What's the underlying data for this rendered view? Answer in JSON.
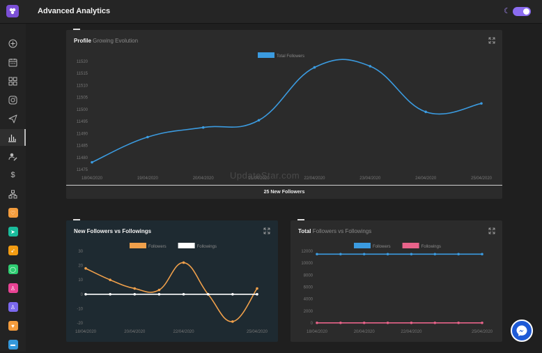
{
  "header": {
    "title": "Advanced Analytics",
    "theme_toggle": "on"
  },
  "sidebar": {
    "items": [
      {
        "icon": "add-circle-icon"
      },
      {
        "icon": "calendar-icon"
      },
      {
        "icon": "grid-icon"
      },
      {
        "icon": "instagram-icon"
      },
      {
        "icon": "send-icon"
      },
      {
        "icon": "bar-chart-icon",
        "active": true
      },
      {
        "icon": "user-edit-icon"
      },
      {
        "icon": "dollar-icon"
      },
      {
        "icon": "hierarchy-icon"
      },
      {
        "icon": "heart-app-icon",
        "color": "#f39c3d"
      },
      {
        "icon": "telegram-app-icon",
        "color": "#1abc9c"
      },
      {
        "icon": "rocket-app-icon",
        "color": "#f39c12"
      },
      {
        "icon": "whatsapp-app-icon",
        "color": "#2ecc71"
      },
      {
        "icon": "user-app-icon",
        "color": "#e84393"
      },
      {
        "icon": "users-app-icon",
        "color": "#7b68ee"
      },
      {
        "icon": "heart-badge-app-icon",
        "color": "#f39c3d"
      },
      {
        "icon": "chat-app-icon",
        "color": "#3498db"
      }
    ]
  },
  "watermark": "UpdateStar.com",
  "cards": {
    "profile": {
      "title_bold": "Profile",
      "title_muted": "Growing Evolution",
      "footer": "25 New Followers"
    },
    "new_vs": {
      "title_bold": "New Followers vs Followings",
      "title_muted": ""
    },
    "total_vs": {
      "title_bold": "Total",
      "title_muted": "Followers vs Followings"
    }
  },
  "chart_data": [
    {
      "type": "line",
      "title": "Profile Growing Evolution",
      "x": [
        "18/04/2020",
        "19/04/2020",
        "20/04/2020",
        "21/04/2020",
        "22/04/2020",
        "23/04/2020",
        "24/04/2020",
        "25/04/2020"
      ],
      "series": [
        {
          "name": "Total Followers",
          "values": [
            11478,
            11488.5,
            11492.5,
            11495.5,
            11517.5,
            11518,
            11499,
            11502.5
          ],
          "color": "#3b9be0"
        }
      ],
      "ylim": [
        11475,
        11520
      ],
      "yticks": [
        11475,
        11480,
        11485,
        11490,
        11495,
        11500,
        11505,
        11510,
        11515,
        11520
      ],
      "xtick_labels": [
        "18/04/2020",
        "19/04/2020",
        "20/04/2020",
        "21/04/2020",
        "22/04/2020",
        "23/04/2020",
        "24/04/2020",
        "25/04/2020"
      ],
      "legend": "top-center"
    },
    {
      "type": "line",
      "title": "New Followers vs Followings",
      "x": [
        "18/04/2020",
        "19/04/2020",
        "20/04/2020",
        "21/04/2020",
        "22/04/2020",
        "23/04/2020",
        "24/04/2020",
        "25/04/2020"
      ],
      "series": [
        {
          "name": "Followers",
          "values": [
            18,
            10,
            4,
            3,
            22,
            0,
            -19,
            4
          ],
          "color": "#f0a04b"
        },
        {
          "name": "Followings",
          "values": [
            0,
            0,
            0,
            0,
            0,
            0,
            0,
            0
          ],
          "color": "#ffffff"
        }
      ],
      "ylim": [
        -20,
        30
      ],
      "yticks": [
        -20,
        -10,
        0,
        10,
        20,
        30
      ],
      "xtick_labels": [
        "18/04/2020",
        "20/04/2020",
        "22/04/2020",
        "25/04/2020"
      ],
      "legend": "top-center"
    },
    {
      "type": "line",
      "title": "Total Followers vs Followings",
      "x": [
        "18/04/2020",
        "19/04/2020",
        "20/04/2020",
        "21/04/2020",
        "22/04/2020",
        "23/04/2020",
        "24/04/2020",
        "25/04/2020"
      ],
      "series": [
        {
          "name": "Followers",
          "values": [
            11500,
            11500,
            11500,
            11500,
            11500,
            11500,
            11500,
            11500
          ],
          "color": "#3b9be0"
        },
        {
          "name": "Followings",
          "values": [
            25,
            25,
            25,
            25,
            25,
            25,
            25,
            25
          ],
          "color": "#e8638a"
        }
      ],
      "ylim": [
        0,
        12000
      ],
      "yticks": [
        0,
        2000,
        4000,
        6000,
        8000,
        10000,
        12000
      ],
      "xtick_labels": [
        "18/04/2020",
        "20/04/2020",
        "22/04/2020",
        "25/04/2020"
      ],
      "legend": "top-center"
    }
  ]
}
